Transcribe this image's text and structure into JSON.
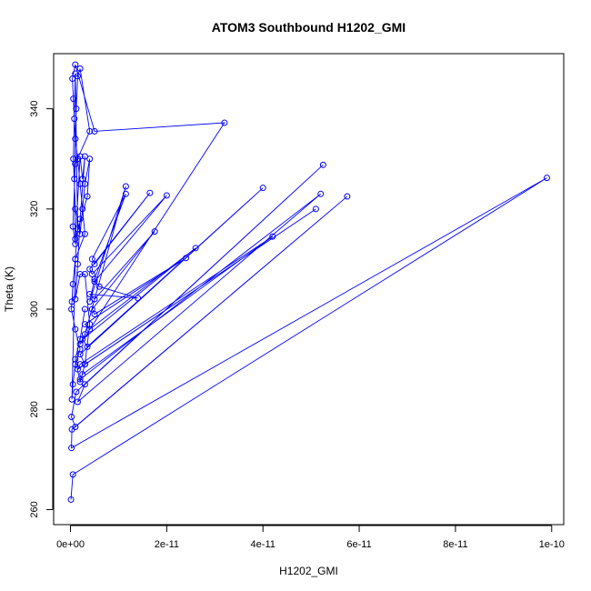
{
  "chart_data": {
    "type": "line",
    "title": "ATOM3 Southbound H1202_GMI",
    "xlabel": "H1202_GMI",
    "ylabel": "Theta (K)",
    "xlim": [
      -3.5e-12,
      1.025e-10
    ],
    "ylim": [
      257,
      351
    ],
    "x_ticks": [
      0,
      2e-11,
      4e-11,
      6e-11,
      8e-11,
      1e-10
    ],
    "x_tick_labels": [
      "0e+00",
      "2e-11",
      "4e-11",
      "6e-11",
      "8e-11",
      "1e-10"
    ],
    "y_ticks": [
      260,
      280,
      300,
      320,
      340
    ],
    "y_tick_labels": [
      "260",
      "280",
      "300",
      "320",
      "340"
    ],
    "grid": false,
    "series": [
      {
        "color": "#0000ff",
        "marker": "open-circle",
        "points": [
          [
            1e-13,
            262.0
          ],
          [
            5e-13,
            267.0
          ],
          [
            9.9e-11,
            326.2
          ],
          [
            2e-13,
            272.3
          ],
          [
            3e-13,
            276.0
          ],
          [
            5.75e-11,
            322.5
          ],
          [
            1e-12,
            276.5
          ],
          [
            2e-13,
            278.5
          ],
          [
            1.2e-12,
            283.5
          ],
          [
            5.25e-11,
            328.8
          ],
          [
            3e-12,
            285.0
          ],
          [
            1.5e-12,
            281.5
          ],
          [
            5.2e-11,
            323.0
          ],
          [
            2e-12,
            286.0
          ],
          [
            2.5e-12,
            287.0
          ],
          [
            4.2e-11,
            314.5
          ],
          [
            2e-12,
            289.0
          ],
          [
            1.5e-12,
            288.0
          ],
          [
            5.1e-11,
            320.0
          ],
          [
            3e-12,
            289.0
          ],
          [
            2e-12,
            291.0
          ],
          [
            4e-11,
            324.2
          ],
          [
            3.5e-12,
            292.5
          ],
          [
            2.5e-12,
            294.0
          ],
          [
            2.6e-11,
            312.2
          ],
          [
            4e-12,
            296.0
          ],
          [
            3e-12,
            297.0
          ],
          [
            2.4e-11,
            310.2
          ],
          [
            5e-12,
            299.0
          ],
          [
            4.5e-12,
            300.0
          ],
          [
            1.75e-11,
            315.5
          ],
          [
            5e-12,
            302.0
          ],
          [
            4e-12,
            303.0
          ],
          [
            1.4e-11,
            302.2
          ],
          [
            6e-12,
            304.5
          ],
          [
            5e-12,
            305.5
          ],
          [
            2e-11,
            322.7
          ],
          [
            4.5e-12,
            307.0
          ],
          [
            4e-12,
            308.0
          ],
          [
            1.65e-11,
            323.2
          ],
          [
            5e-12,
            309.0
          ],
          [
            4.5e-12,
            310.0
          ],
          [
            1.15e-11,
            323.0
          ],
          [
            5e-12,
            306.0
          ],
          [
            4e-12,
            301.5
          ],
          [
            1.15e-11,
            324.5
          ],
          [
            3e-12,
            295.0
          ],
          [
            2e-12,
            293.0
          ],
          [
            3.2e-11,
            337.2
          ],
          [
            5e-12,
            335.5
          ],
          [
            1e-12,
            348.8
          ],
          [
            4e-13,
            346.0
          ],
          [
            6e-13,
            342.0
          ],
          [
            8e-13,
            338.0
          ],
          [
            1e-12,
            334.0
          ],
          [
            1.5e-12,
            330.0
          ],
          [
            2e-12,
            325.0
          ],
          [
            2.5e-12,
            320.0
          ],
          [
            3e-12,
            315.0
          ],
          [
            1e-12,
            310.0
          ],
          [
            5e-13,
            305.0
          ],
          [
            3e-13,
            301.5
          ],
          [
            2e-13,
            300.0
          ],
          [
            1e-12,
            296.0
          ],
          [
            2e-12,
            292.0
          ],
          [
            1e-12,
            289.0
          ],
          [
            5e-13,
            285.0
          ],
          [
            3e-13,
            282.0
          ],
          [
            1e-12,
            310.0
          ],
          [
            1.5e-12,
            316.0
          ],
          [
            1e-12,
            347.0
          ],
          [
            6e-13,
            330.0
          ],
          [
            1e-12,
            320.0
          ],
          [
            2e-12,
            315.0
          ],
          [
            3e-12,
            325.0
          ],
          [
            4e-12,
            330.0
          ],
          [
            3.5e-12,
            322.5
          ],
          [
            1e-12,
            314.0
          ],
          [
            8e-13,
            326.0
          ],
          [
            1.2e-12,
            340.0
          ],
          [
            1.5e-12,
            346.5
          ],
          [
            2e-12,
            348.0
          ],
          [
            4e-12,
            335.5
          ],
          [
            1e-12,
            329.0
          ],
          [
            5e-13,
            316.5
          ],
          [
            1e-12,
            313.0
          ],
          [
            2e-12,
            330.5
          ],
          [
            2.5e-12,
            326.0
          ],
          [
            3e-12,
            330.5
          ],
          [
            2e-12,
            318.0
          ],
          [
            1.5e-12,
            309.0
          ],
          [
            1e-12,
            302.0
          ],
          [
            2e-12,
            307.0
          ],
          [
            3e-12,
            307.0
          ],
          [
            4e-12,
            297.0
          ],
          [
            3e-12,
            289.0
          ],
          [
            2e-12,
            285.5
          ],
          [
            1e-12,
            290.0
          ],
          [
            2e-12,
            294.0
          ],
          [
            3e-12,
            300.0
          ]
        ]
      }
    ]
  }
}
